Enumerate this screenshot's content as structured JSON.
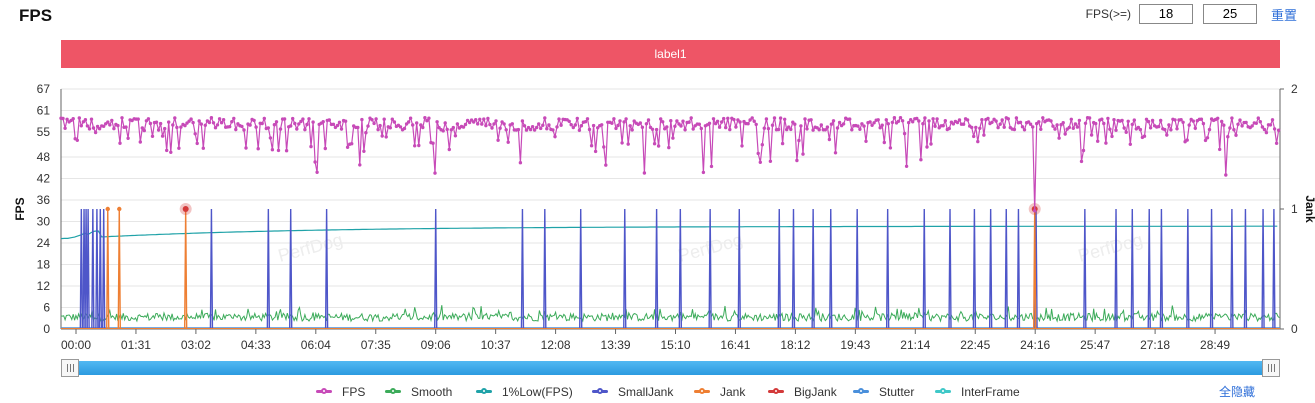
{
  "header": {
    "title": "FPS",
    "fps_threshold_label": "FPS(>=)",
    "fps_threshold_1": "18",
    "fps_threshold_2": "25",
    "reset_label": "重置"
  },
  "label_bar": {
    "text": "label1",
    "color": "#ee5566"
  },
  "chart_data": {
    "type": "line",
    "y_left": {
      "label": "FPS",
      "ticks": [
        0,
        6,
        12,
        18,
        24,
        30,
        36,
        42,
        48,
        55,
        61,
        67
      ],
      "range": [
        0,
        67
      ]
    },
    "y_right": {
      "label": "Jank",
      "ticks": [
        0,
        1,
        2
      ],
      "range": [
        0,
        2
      ]
    },
    "x_ticks": [
      "00:00",
      "01:31",
      "03:02",
      "04:33",
      "06:04",
      "07:35",
      "09:06",
      "10:37",
      "12:08",
      "13:39",
      "15:10",
      "16:41",
      "18:12",
      "19:43",
      "21:14",
      "22:45",
      "24:16",
      "25:47",
      "27:18",
      "28:49"
    ],
    "x_range_seconds": [
      0,
      1799
    ],
    "watermark": "PerfDog",
    "series": [
      {
        "name": "FPS",
        "color": "#c74ab8",
        "axis": "left",
        "typical_range": [
          50,
          61
        ],
        "dips": [
          {
            "t": 1437,
            "value": 33
          },
          {
            "t": 1720,
            "value": 43
          }
        ]
      },
      {
        "name": "Smooth",
        "color": "#3cab5a",
        "axis": "left",
        "typical_range": [
          1,
          7
        ]
      },
      {
        "name": "1%Low(FPS)",
        "color": "#1fa2a8",
        "axis": "left",
        "start_value": 26,
        "end_value": 29
      },
      {
        "name": "SmallJank",
        "color": "#4e56c9",
        "axis": "right",
        "events_seconds": [
          30,
          34,
          37,
          40,
          47,
          53,
          58,
          63,
          222,
          306,
          339,
          392,
          553,
          681,
          714,
          767,
          832,
          879,
          914,
          958,
          1001,
          1060,
          1081,
          1110,
          1136,
          1175,
          1220,
          1274,
          1312,
          1348,
          1372,
          1395,
          1413,
          1439,
          1511,
          1557,
          1581,
          1606,
          1624,
          1663,
          1698,
          1728,
          1748,
          1774,
          1790
        ]
      },
      {
        "name": "Jank",
        "color": "#ee7f33",
        "axis": "right",
        "events_seconds": [
          69,
          86,
          184,
          1437
        ]
      },
      {
        "name": "BigJank",
        "color": "#d33a3a",
        "axis": "right",
        "events_seconds": [
          184,
          1437
        ]
      },
      {
        "name": "Stutter",
        "color": "#4a8fdb",
        "axis": "left",
        "value": 0
      },
      {
        "name": "InterFrame",
        "color": "#3fc8c8",
        "axis": "left",
        "value": 0
      }
    ]
  },
  "legend": {
    "items": [
      {
        "label": "FPS",
        "color": "#c74ab8"
      },
      {
        "label": "Smooth",
        "color": "#3cab5a"
      },
      {
        "label": "1%Low(FPS)",
        "color": "#1fa2a8"
      },
      {
        "label": "SmallJank",
        "color": "#4e56c9"
      },
      {
        "label": "Jank",
        "color": "#ee7f33"
      },
      {
        "label": "BigJank",
        "color": "#d33a3a"
      },
      {
        "label": "Stutter",
        "color": "#4a8fdb"
      },
      {
        "label": "InterFrame",
        "color": "#3fc8c8"
      }
    ],
    "hide_all_label": "全隐藏"
  }
}
